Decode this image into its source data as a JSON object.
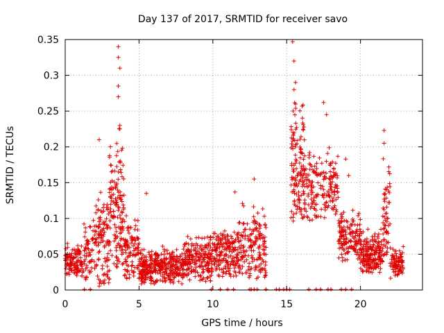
{
  "chart_data": {
    "type": "scatter",
    "title": "Day 137 of 2017, SRMTID for receiver savo",
    "xlabel": "GPS time / hours",
    "ylabel": "SRMTID / TECUs",
    "xlim": [
      0,
      24.2
    ],
    "ylim": [
      0,
      0.35
    ],
    "x_ticks": [
      0,
      5,
      10,
      15,
      20
    ],
    "y_ticks": [
      0,
      0.05,
      0.1,
      0.15,
      0.2,
      0.25,
      0.3,
      0.35
    ],
    "x_tick_labels": [
      "0",
      "5",
      "10",
      "15",
      "20"
    ],
    "y_tick_labels": [
      "0",
      "0.05",
      "0.1",
      "0.15",
      "0.2",
      "0.25",
      "0.3",
      "0.35"
    ],
    "grid": true,
    "marker": "+",
    "color": "#e00000",
    "series": [
      {
        "name": "SRMTID",
        "segments": [
          {
            "x_start": 0.0,
            "x_end": 1.2,
            "count": 120,
            "base": 0.038,
            "spread": 0.03
          },
          {
            "x_start": 1.2,
            "x_end": 2.0,
            "count": 60,
            "base": 0.05,
            "spread": 0.07
          },
          {
            "x_start": 2.0,
            "x_end": 3.0,
            "count": 110,
            "base": 0.06,
            "spread": 0.09
          },
          {
            "x_start": 3.0,
            "x_end": 4.0,
            "count": 140,
            "base": 0.11,
            "spread": 0.13
          },
          {
            "x_start": 4.0,
            "x_end": 5.0,
            "count": 100,
            "base": 0.05,
            "spread": 0.06
          },
          {
            "x_start": 5.0,
            "x_end": 8.0,
            "count": 330,
            "base": 0.03,
            "spread": 0.035
          },
          {
            "x_start": 8.0,
            "x_end": 10.0,
            "count": 220,
            "base": 0.04,
            "spread": 0.045
          },
          {
            "x_start": 10.0,
            "x_end": 12.0,
            "count": 200,
            "base": 0.05,
            "spread": 0.05
          },
          {
            "x_start": 12.0,
            "x_end": 13.6,
            "count": 150,
            "base": 0.06,
            "spread": 0.07
          },
          {
            "x_start": 15.3,
            "x_end": 16.2,
            "count": 130,
            "base": 0.17,
            "spread": 0.12
          },
          {
            "x_start": 16.2,
            "x_end": 18.5,
            "count": 180,
            "base": 0.14,
            "spread": 0.07
          },
          {
            "x_start": 18.5,
            "x_end": 20.0,
            "count": 150,
            "base": 0.07,
            "spread": 0.05
          },
          {
            "x_start": 20.0,
            "x_end": 21.5,
            "count": 180,
            "base": 0.05,
            "spread": 0.04
          },
          {
            "x_start": 21.5,
            "x_end": 22.0,
            "count": 60,
            "base": 0.1,
            "spread": 0.1
          },
          {
            "x_start": 22.0,
            "x_end": 22.9,
            "count": 90,
            "base": 0.035,
            "spread": 0.03
          }
        ],
        "outliers": [
          {
            "x": 3.6,
            "y": 0.34
          },
          {
            "x": 3.6,
            "y": 0.325
          },
          {
            "x": 3.7,
            "y": 0.31
          },
          {
            "x": 3.6,
            "y": 0.285
          },
          {
            "x": 3.6,
            "y": 0.27
          },
          {
            "x": 3.7,
            "y": 0.23
          },
          {
            "x": 3.7,
            "y": 0.225
          },
          {
            "x": 2.3,
            "y": 0.21
          },
          {
            "x": 15.4,
            "y": 0.347
          },
          {
            "x": 15.5,
            "y": 0.32
          },
          {
            "x": 15.6,
            "y": 0.29
          },
          {
            "x": 15.5,
            "y": 0.28
          },
          {
            "x": 15.6,
            "y": 0.26
          },
          {
            "x": 17.5,
            "y": 0.262
          },
          {
            "x": 17.7,
            "y": 0.245
          },
          {
            "x": 21.6,
            "y": 0.223
          },
          {
            "x": 21.6,
            "y": 0.205
          },
          {
            "x": 19.0,
            "y": 0.183
          },
          {
            "x": 19.2,
            "y": 0.16
          },
          {
            "x": 12.8,
            "y": 0.155
          },
          {
            "x": 5.5,
            "y": 0.135
          },
          {
            "x": 11.5,
            "y": 0.137
          }
        ],
        "zero_points": [
          1.3,
          1.7,
          9.9,
          10.5,
          11.0,
          11.4,
          12.5,
          12.6,
          12.8,
          13.0,
          13.6,
          14.3,
          14.5,
          14.8,
          15.0,
          15.2,
          16.5,
          17.0,
          17.3,
          17.8,
          18.0,
          18.7,
          19.0,
          19.4
        ]
      }
    ]
  }
}
